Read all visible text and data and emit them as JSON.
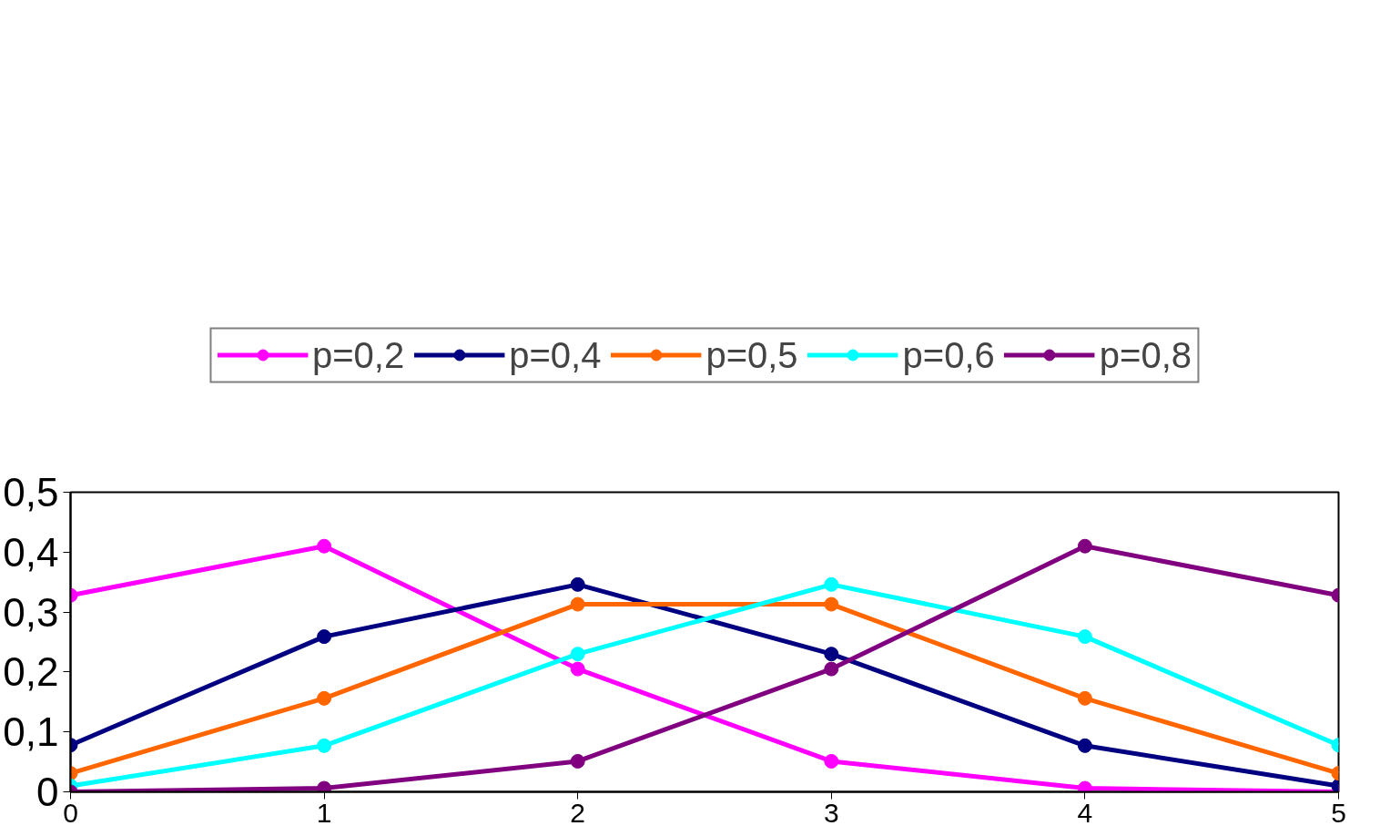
{
  "chart_data": {
    "type": "line",
    "x": [
      0,
      1,
      2,
      3,
      4,
      5
    ],
    "series": [
      {
        "name": "p=0,2",
        "color": "#ff00ff",
        "values": [
          0.328,
          0.41,
          0.205,
          0.051,
          0.006,
          0.0
        ]
      },
      {
        "name": "p=0,4",
        "color": "#000080",
        "values": [
          0.078,
          0.259,
          0.346,
          0.23,
          0.077,
          0.01
        ]
      },
      {
        "name": "p=0,5",
        "color": "#ff6600",
        "values": [
          0.031,
          0.156,
          0.313,
          0.313,
          0.156,
          0.031
        ]
      },
      {
        "name": "p=0,6",
        "color": "#00ffff",
        "values": [
          0.01,
          0.077,
          0.23,
          0.346,
          0.259,
          0.078
        ]
      },
      {
        "name": "p=0,8",
        "color": "#800080",
        "values": [
          0.0,
          0.006,
          0.051,
          0.205,
          0.41,
          0.328
        ]
      }
    ],
    "xlim": [
      0,
      5
    ],
    "xticks": [
      0,
      1,
      2,
      3,
      4,
      5
    ],
    "ylim": [
      0,
      0.5
    ],
    "yticks": [
      0,
      {
        "value": 0.1,
        "label": "0,1"
      },
      {
        "value": 0.2,
        "label": "0,2"
      },
      {
        "value": 0.3,
        "label": "0,3"
      },
      {
        "value": 0.4,
        "label": "0,4"
      },
      {
        "value": 0.5,
        "label": "0,5"
      }
    ],
    "grid": false,
    "legend": "top",
    "marker": "circle",
    "line_style": "solid"
  }
}
